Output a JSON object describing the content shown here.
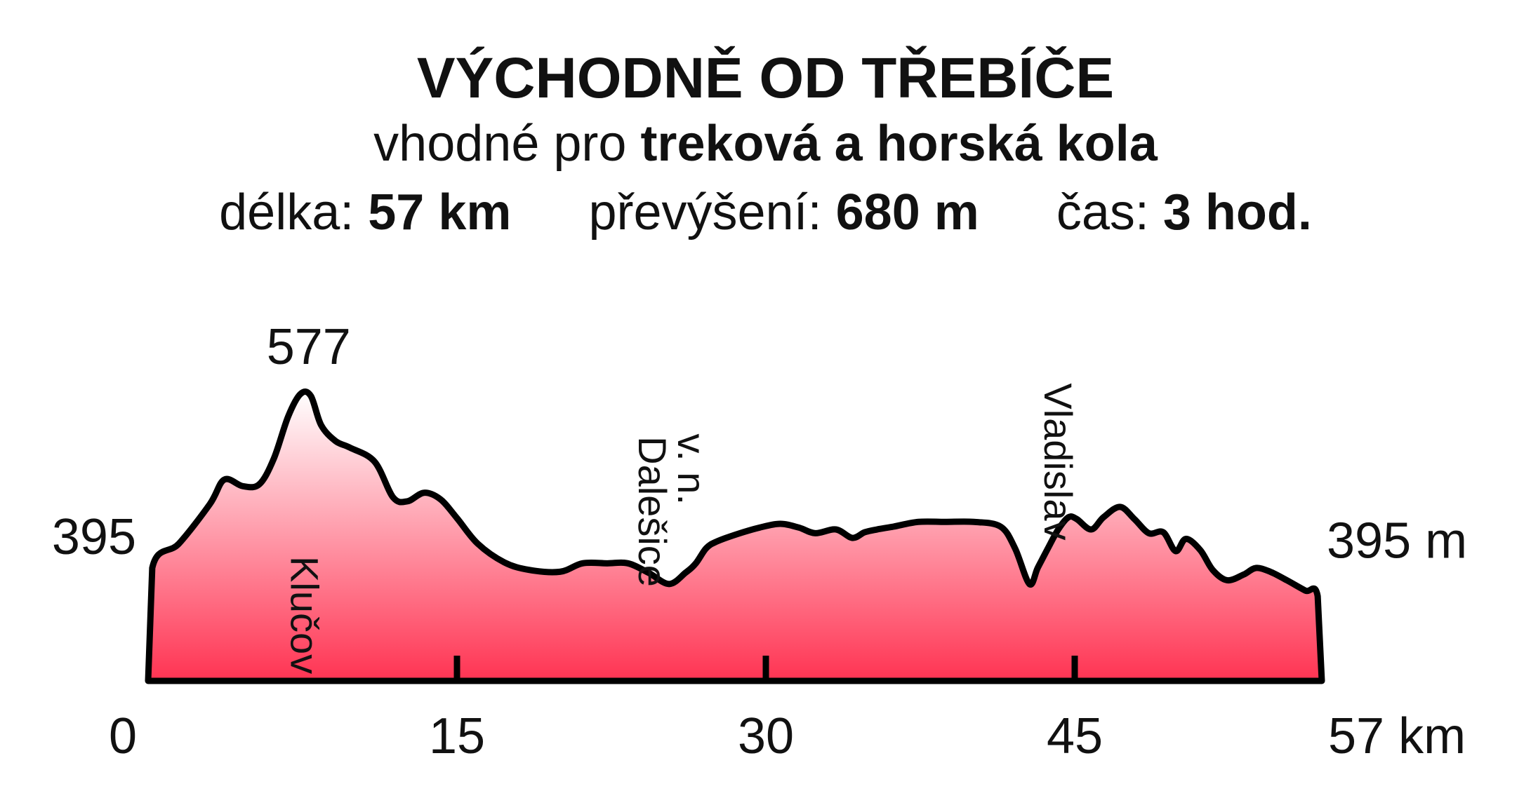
{
  "header": {
    "title": "VÝCHODNĚ OD TŘEBÍČE",
    "suitable_prefix": "vhodné pro",
    "suitable_value": "treková a horská kola",
    "length_label": "délka:",
    "length_value": "57 km",
    "climb_label": "převýšení:",
    "climb_value": "680 m",
    "time_label": "čas:",
    "time_value": "3 hod."
  },
  "chart_data": {
    "type": "area",
    "title": "VÝCHODNĚ OD TŘEBÍČE",
    "xlabel": "",
    "ylabel": "",
    "x_unit": "km",
    "y_unit": "m",
    "xlim": [
      0,
      57
    ],
    "ylim": [
      272,
      600
    ],
    "x_ticks": [
      0,
      15,
      30,
      45,
      57
    ],
    "x_tick_labels": [
      "0",
      "15",
      "30",
      "45",
      "57 km"
    ],
    "y_start_label": "395",
    "y_end_label": "395 m",
    "peak_label": "577",
    "peak": {
      "x": 7.8,
      "y": 577
    },
    "grid": false,
    "legend": "none",
    "fill_top_color": "#ffffff",
    "fill_bottom_color": "#ff3352",
    "line_color": "#000000",
    "places": [
      {
        "name": "Klučov",
        "x": 7.6,
        "y": 342
      },
      {
        "name": "Dalešice",
        "x": 24.5,
        "y": 452
      },
      {
        "name": "v. n.",
        "x": 26.4,
        "y": 497
      },
      {
        "name": "Vladislav",
        "x": 44.2,
        "y": 505
      }
    ],
    "series": [
      {
        "x": [
          0,
          0.2,
          1.5,
          3,
          3.7,
          4.6,
          5.4,
          6.1,
          6.8,
          7.4,
          7.9,
          8.4,
          9.1,
          9.8,
          11,
          11.9,
          12.6,
          13.4,
          14.2,
          15,
          16,
          17.3,
          18.5,
          20,
          21.1,
          22.3,
          23.3,
          24.3,
          25.3,
          26.1,
          26.6,
          27.1,
          27.6,
          28.6,
          29.7,
          30.7,
          31.6,
          32.4,
          33.4,
          34.2,
          34.8,
          35.4,
          36.2,
          37.4,
          38.7,
          40.1,
          41.4,
          42.1,
          42.8,
          43.2,
          43.7,
          44.2,
          44.7,
          45.1,
          45.8,
          46.4,
          47.2,
          47.9,
          48.6,
          49.3,
          49.9,
          50.4,
          51.1,
          51.7,
          52.4,
          53.2,
          53.8,
          54.5,
          55.3,
          56.2,
          56.8,
          57
        ],
        "y": [
          272,
          392,
          418,
          460,
          486,
          479,
          481,
          508,
          553,
          577,
          575,
          544,
          527,
          520,
          505,
          467,
          463,
          472,
          465,
          445,
          418,
          398,
          390,
          388,
          397,
          397,
          397,
          387,
          375,
          387,
          397,
          413,
          420,
          428,
          435,
          439,
          435,
          429,
          433,
          424,
          430,
          433,
          436,
          441,
          441,
          441,
          436,
          413,
          375,
          392,
          413,
          433,
          446,
          444,
          433,
          446,
          457,
          444,
          429,
          430,
          410,
          423,
          411,
          390,
          379,
          385,
          392,
          388,
          379,
          368,
          362,
          272
        ]
      }
    ]
  }
}
